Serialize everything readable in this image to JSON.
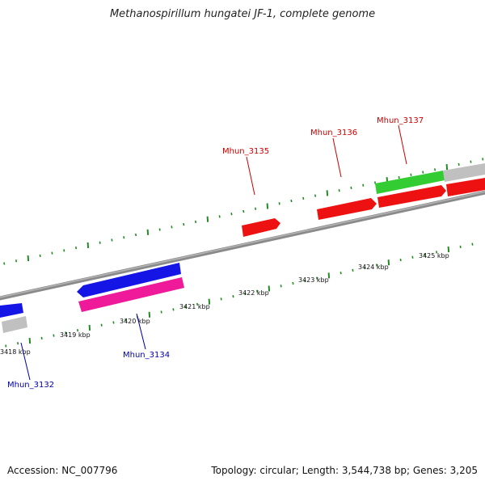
{
  "title": "Methanospirillum hungatei JF-1, complete genome",
  "footer": {
    "accession": "Accession: NC_007796",
    "summary": "Topology: circular; Length: 3,544,738 bp; Genes: 3,205"
  },
  "colors": {
    "backbone": "#8a8a8a",
    "tick": "#228b22",
    "forward_label": "#cc0000",
    "reverse_label": "#0000aa",
    "red_gene": "#ee1111",
    "green_gene": "#33cc33",
    "gray_gene": "#c0c0c0",
    "blue_gene": "#1515e6",
    "magenta_gene": "#ee1a9a"
  },
  "scale_labels": [
    "3418 kbp",
    "3419 kbp",
    "3420 kbp",
    "3421 kbp",
    "3422 kbp",
    "3423 kbp",
    "3424 kbp",
    "3425 kbp"
  ],
  "genes": [
    {
      "id": "blue-left",
      "strand": "reverse",
      "color": "blue"
    },
    {
      "id": "gray-left",
      "strand": "reverse",
      "color": "gray"
    },
    {
      "id": "blue-mid",
      "strand": "reverse",
      "color": "blue"
    },
    {
      "id": "magenta-mid",
      "strand": "reverse",
      "color": "magenta"
    },
    {
      "id": "red-3135",
      "strand": "forward",
      "color": "red"
    },
    {
      "id": "red-3136",
      "strand": "forward",
      "color": "red"
    },
    {
      "id": "red-3137",
      "strand": "forward",
      "color": "red"
    },
    {
      "id": "red-right",
      "strand": "forward",
      "color": "red"
    },
    {
      "id": "green-3137",
      "strand": "forward",
      "color": "green"
    },
    {
      "id": "gray-right",
      "strand": "forward",
      "color": "gray"
    }
  ],
  "gene_labels": [
    {
      "text": "Mhun_3132",
      "strand": "reverse"
    },
    {
      "text": "Mhun_3134",
      "strand": "reverse"
    },
    {
      "text": "Mhun_3135",
      "strand": "forward"
    },
    {
      "text": "Mhun_3136",
      "strand": "forward"
    },
    {
      "text": "Mhun_3137",
      "strand": "forward"
    }
  ]
}
